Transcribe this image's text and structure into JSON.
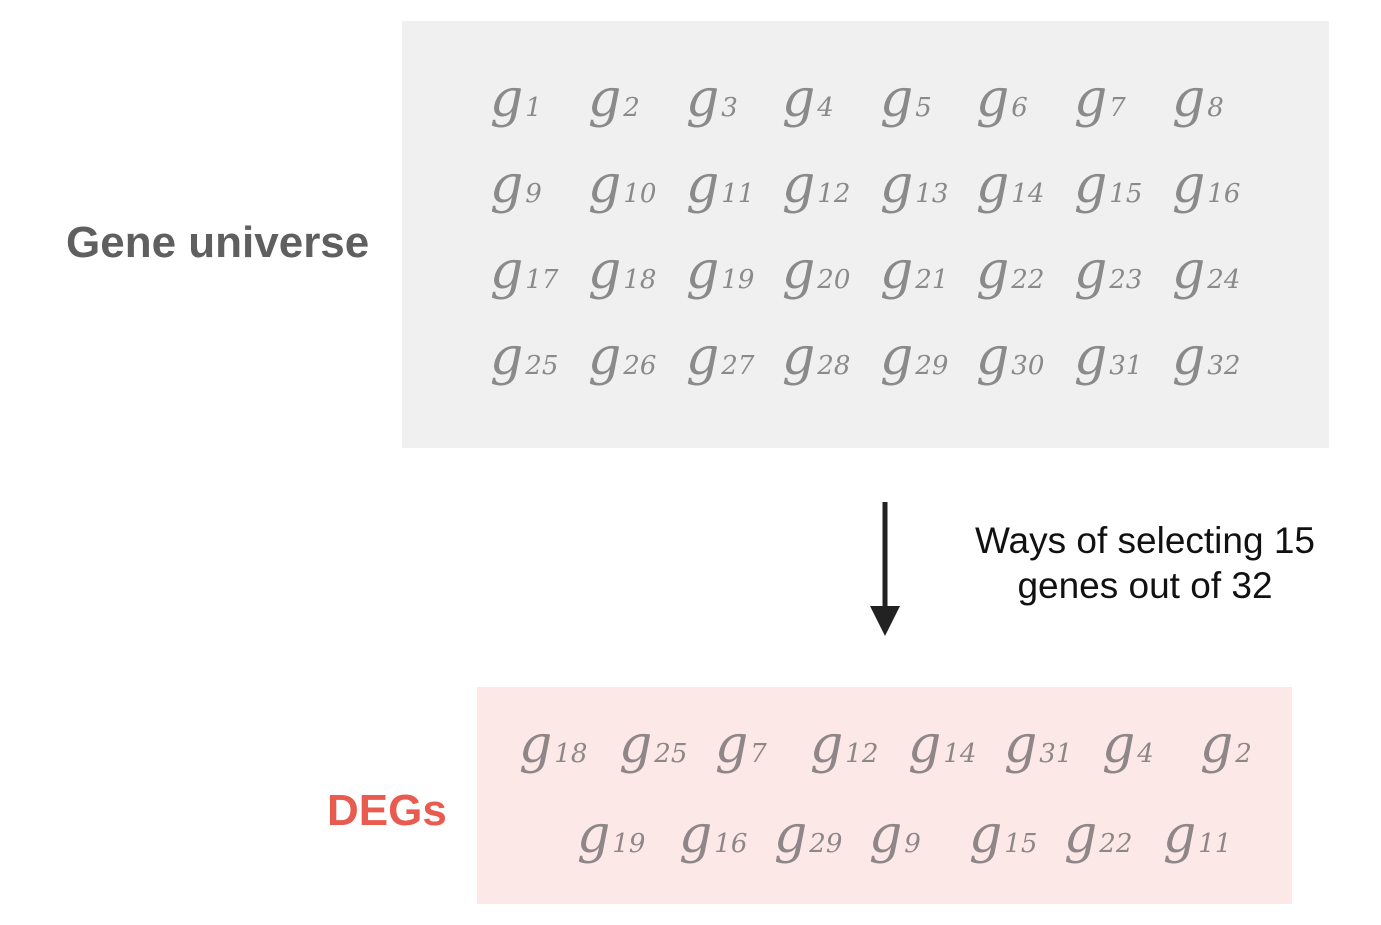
{
  "labels": {
    "universe": "Gene universe",
    "degs": "DEGs"
  },
  "caption": {
    "line1": "Ways of selecting 15",
    "line2": "genes out of 32"
  },
  "gene_symbol": "g",
  "universe_rows": [
    [
      "1",
      "2",
      "3",
      "4",
      "5",
      "6",
      "7",
      "8"
    ],
    [
      "9",
      "10",
      "11",
      "12",
      "13",
      "14",
      "15",
      "16"
    ],
    [
      "17",
      "18",
      "19",
      "20",
      "21",
      "22",
      "23",
      "24"
    ],
    [
      "25",
      "26",
      "27",
      "28",
      "29",
      "30",
      "31",
      "32"
    ]
  ],
  "deg_rows": [
    [
      "18",
      "25",
      "7",
      "12",
      "14",
      "31",
      "4",
      "2"
    ],
    [
      "19",
      "16",
      "29",
      "9",
      "15",
      "22",
      "11"
    ]
  ],
  "colors": {
    "universe_panel": "#f0f0f0",
    "degs_panel": "#fde8e8",
    "universe_label": "#5f5f5f",
    "degs_label": "#ea5b4f",
    "gene_text": "#8a8a8c",
    "arrow": "#222222"
  }
}
